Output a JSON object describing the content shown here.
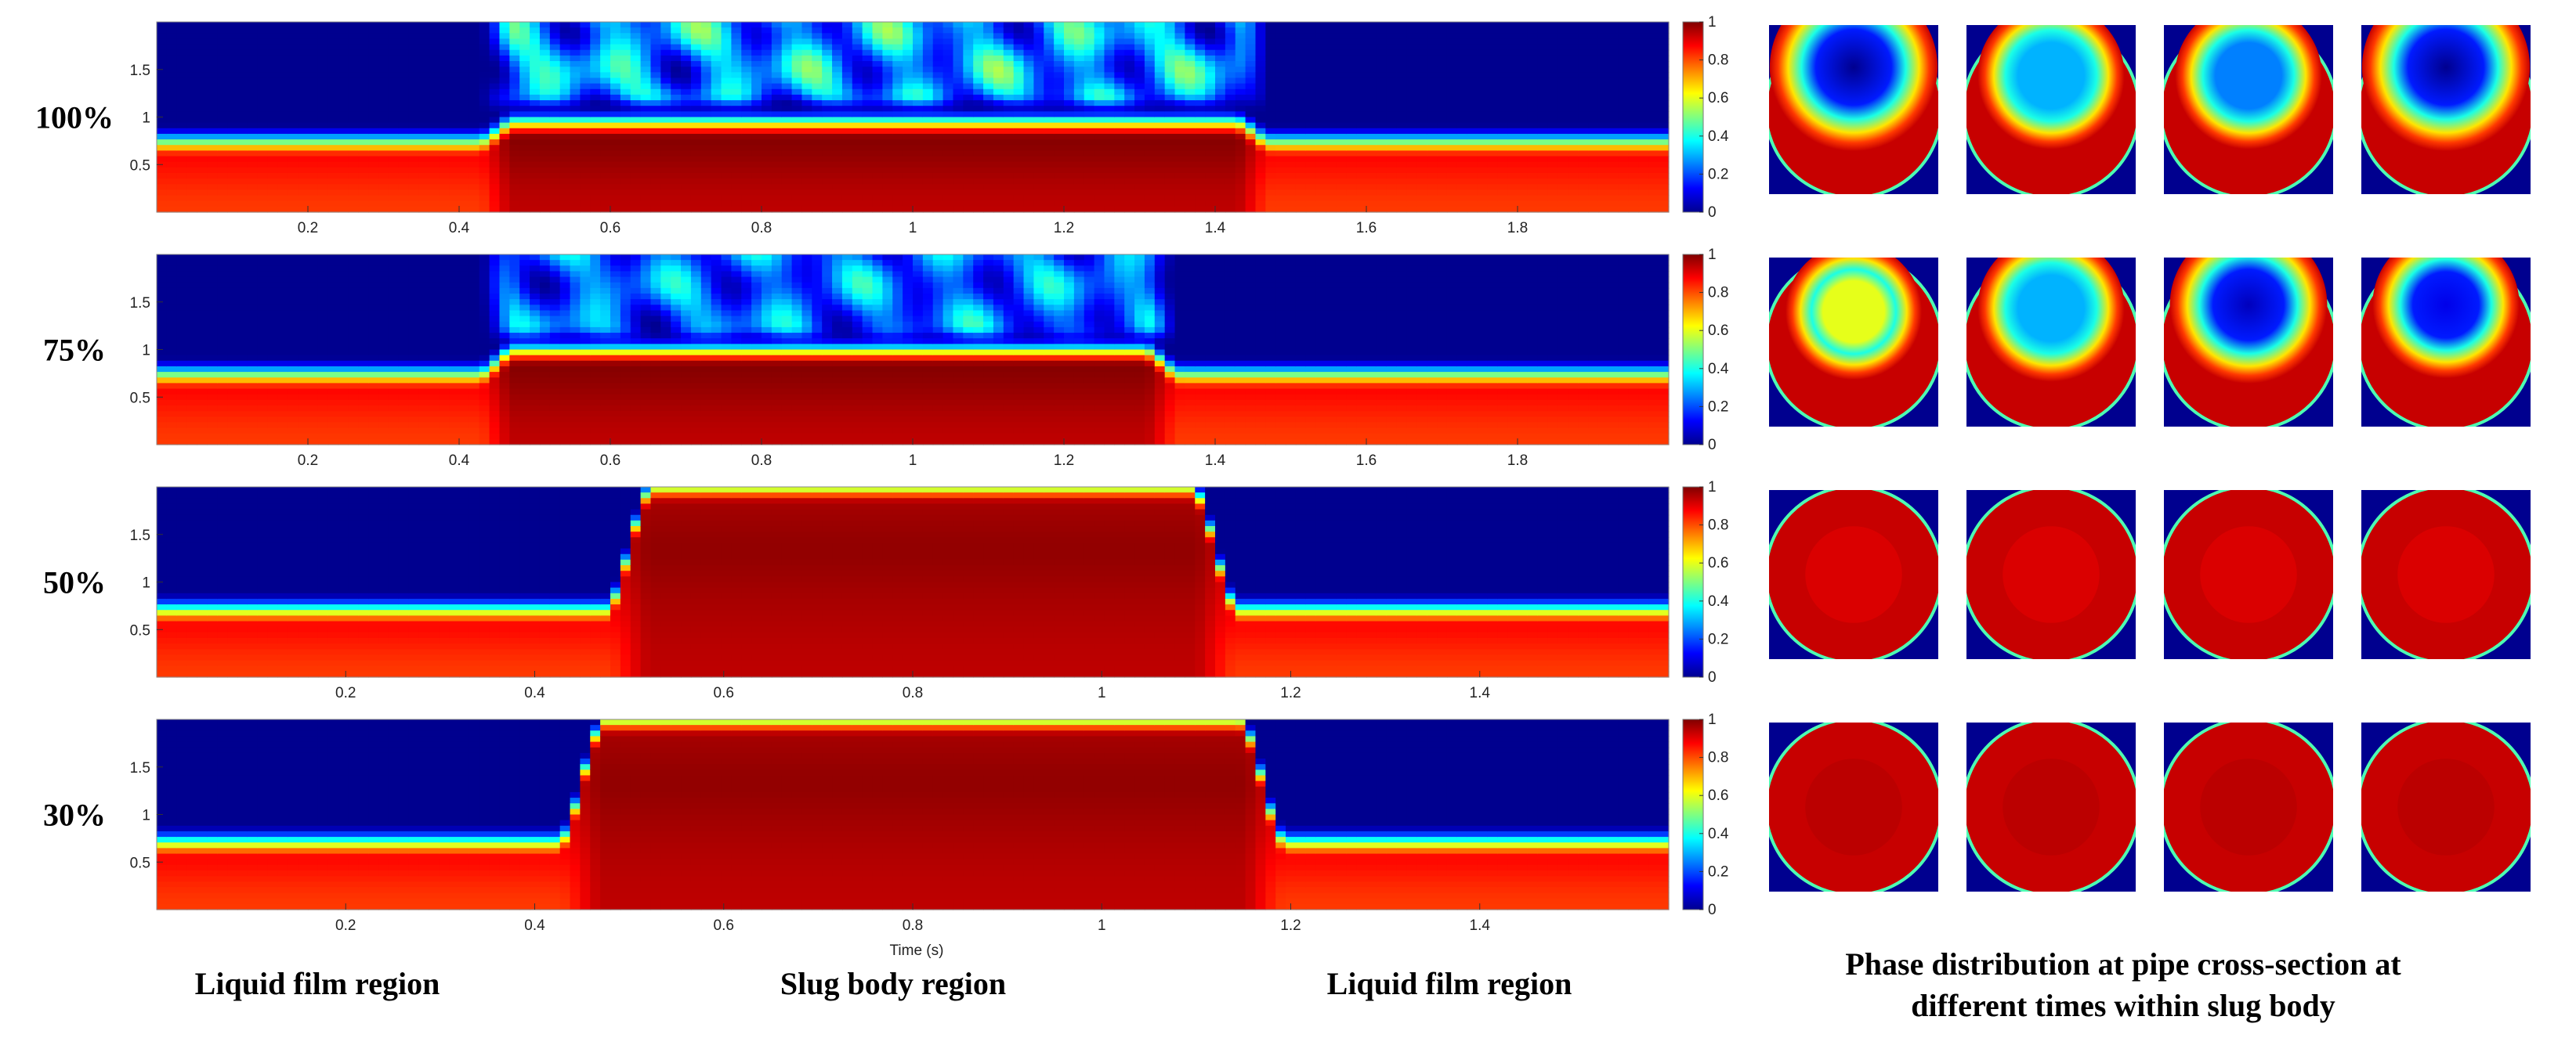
{
  "colormap": {
    "name": "jet",
    "stops": [
      "#00008f",
      "#0000ff",
      "#0080ff",
      "#00ffff",
      "#80ff80",
      "#ffff00",
      "#ff8000",
      "#ff0000",
      "#800000"
    ]
  },
  "chart_data": {
    "type": "heatmap",
    "x_axis_label": "Time (s)",
    "colorbar": {
      "range": [
        0,
        1
      ],
      "ticks": [
        "0",
        "0.2",
        "0.4",
        "0.6",
        "0.8",
        "1"
      ]
    },
    "y_ticks": [
      "0.5",
      "1",
      "1.5"
    ],
    "panels": [
      {
        "label": "100%",
        "x_range": [
          0,
          2
        ],
        "y_range": [
          0,
          2
        ],
        "x_ticks": [
          "0.2",
          "0.4",
          "0.6",
          "0.8",
          "1",
          "1.2",
          "1.4",
          "1.6",
          "1.8"
        ],
        "slug_x": [
          0.45,
          1.45
        ],
        "film_level": 0.75,
        "slug_level": 0.95,
        "slug_aeration": "high",
        "cross_sections": [
          {
            "bubble_center_y": 0.25,
            "bubble_radius": 0.32,
            "hole_value": 0.0
          },
          {
            "bubble_center_y": 0.3,
            "bubble_radius": 0.28,
            "hole_value": 0.3
          },
          {
            "bubble_center_y": 0.3,
            "bubble_radius": 0.28,
            "hole_value": 0.25
          },
          {
            "bubble_center_y": 0.25,
            "bubble_radius": 0.32,
            "hole_value": 0.0
          }
        ]
      },
      {
        "label": "75%",
        "x_range": [
          0,
          2
        ],
        "y_range": [
          0,
          2
        ],
        "x_ticks": [
          "0.2",
          "0.4",
          "0.6",
          "0.8",
          "1",
          "1.2",
          "1.4",
          "1.6",
          "1.8"
        ],
        "slug_x": [
          0.45,
          1.33
        ],
        "film_level": 0.75,
        "slug_level": 1.0,
        "slug_aeration": "medium",
        "cross_sections": [
          {
            "bubble_center_y": 0.32,
            "bubble_radius": 0.26,
            "hole_value": 0.6
          },
          {
            "bubble_center_y": 0.3,
            "bubble_radius": 0.28,
            "hole_value": 0.3
          },
          {
            "bubble_center_y": 0.28,
            "bubble_radius": 0.3,
            "hole_value": 0.05
          },
          {
            "bubble_center_y": 0.28,
            "bubble_radius": 0.28,
            "hole_value": 0.1
          }
        ]
      },
      {
        "label": "50%",
        "x_range": [
          0,
          1.6
        ],
        "y_range": [
          0,
          2
        ],
        "x_ticks": [
          "0.2",
          "0.4",
          "0.6",
          "0.8",
          "1",
          "1.2",
          "1.4"
        ],
        "slug_x": [
          0.5,
          1.12
        ],
        "film_level": 0.72,
        "slug_level": 2.0,
        "slug_aeration": "none",
        "cross_sections": [
          {
            "bubble_center_y": 0.35,
            "bubble_radius": 0.0,
            "hole_value": 0.9
          },
          {
            "bubble_center_y": 0.35,
            "bubble_radius": 0.0,
            "hole_value": 0.9
          },
          {
            "bubble_center_y": 0.35,
            "bubble_radius": 0.0,
            "hole_value": 0.9
          },
          {
            "bubble_center_y": 0.35,
            "bubble_radius": 0.0,
            "hole_value": 0.9
          }
        ]
      },
      {
        "label": "30%",
        "x_range": [
          0,
          1.6
        ],
        "y_range": [
          0,
          2
        ],
        "x_ticks": [
          "0.2",
          "0.4",
          "0.6",
          "0.8",
          "1",
          "1.2",
          "1.4"
        ],
        "slug_x": [
          0.45,
          1.17
        ],
        "film_level": 0.72,
        "slug_level": 2.0,
        "slug_aeration": "none",
        "cross_sections": [
          {
            "bubble_center_y": 0.35,
            "bubble_radius": 0.0,
            "hole_value": 0.95
          },
          {
            "bubble_center_y": 0.35,
            "bubble_radius": 0.0,
            "hole_value": 0.95
          },
          {
            "bubble_center_y": 0.35,
            "bubble_radius": 0.0,
            "hole_value": 0.95
          },
          {
            "bubble_center_y": 0.35,
            "bubble_radius": 0.0,
            "hole_value": 0.95
          }
        ]
      }
    ]
  },
  "captions": {
    "left_region": "Liquid film region",
    "middle_region": "Slug body region",
    "right_region": "Liquid film region",
    "cross_section_line1": "Phase distribution at pipe cross-section at",
    "cross_section_line2": "different times within slug body"
  }
}
